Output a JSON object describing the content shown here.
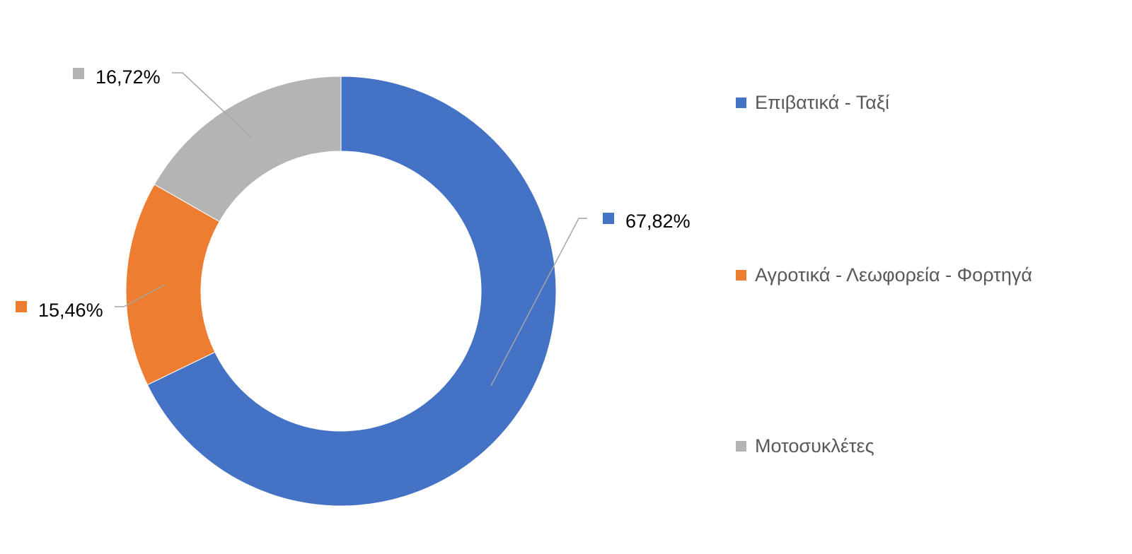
{
  "chart_data": {
    "type": "donut",
    "series": [
      {
        "name": "Επιβατικά - Ταξί",
        "value": 67.82,
        "label": "67,82%",
        "color": "#4472C4"
      },
      {
        "name": "Αγροτικά - Λεωφορεία - Φορτηγά",
        "value": 15.46,
        "label": "15,46%",
        "color": "#ED7D31"
      },
      {
        "name": "Μοτοσυκλέτες",
        "value": 16.72,
        "label": "16,72%",
        "color": "#B4B4B4"
      }
    ],
    "legend_position": "right",
    "leader_line_color": "#A6A6A6",
    "label_color": "#000000"
  }
}
